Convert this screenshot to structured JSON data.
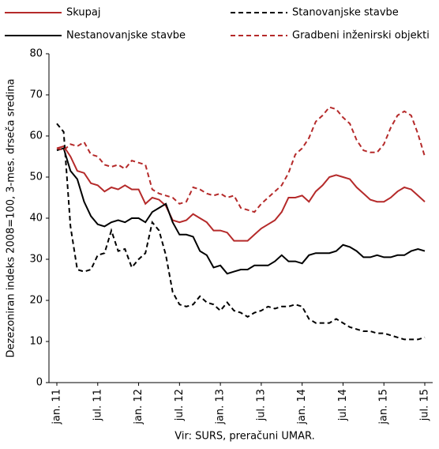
{
  "chart_data": {
    "type": "line",
    "y_label": "Dezezoniran indeks 2008=100, 3-mes. drseča sredina",
    "source": "Vir: SURS, preračuni UMAR.",
    "categories": [
      "jan. 11",
      null,
      null,
      null,
      null,
      null,
      "jul. 11",
      null,
      null,
      null,
      null,
      null,
      "jan. 12",
      null,
      null,
      null,
      null,
      null,
      "jul. 12",
      null,
      null,
      null,
      null,
      null,
      "jan. 13",
      null,
      null,
      null,
      null,
      null,
      "jul. 13",
      null,
      null,
      null,
      null,
      null,
      "jan. 14",
      null,
      null,
      null,
      null,
      null,
      "jul. 14",
      null,
      null,
      null,
      null,
      null,
      "jan. 15",
      null,
      null,
      null,
      null,
      null,
      "jul. 15"
    ],
    "series": [
      {
        "name": "Skupaj",
        "color": "#b52a2a",
        "dashed": false,
        "values": [
          57,
          57.5,
          55,
          51.5,
          51,
          48.5,
          48,
          46.5,
          47.5,
          47,
          48,
          47,
          47,
          43.5,
          45,
          44.5,
          43,
          39.5,
          39,
          39.5,
          41,
          40,
          39,
          37,
          37,
          36.5,
          34.5,
          34.5,
          34.5,
          36,
          37.5,
          38.5,
          39.5,
          41.5,
          45,
          45,
          45.5,
          44,
          46.5,
          48,
          50,
          50.5,
          50,
          49.5,
          47.5,
          46,
          44.5,
          44,
          44,
          45,
          46.5,
          47.5,
          47,
          45.5,
          44
        ]
      },
      {
        "name": "Stanovanjske stavbe",
        "color": "#000000",
        "dashed": true,
        "values": [
          63,
          61,
          38,
          27.5,
          27,
          27.5,
          31,
          31.5,
          37,
          32,
          32.5,
          28,
          30,
          31.5,
          39,
          37,
          31,
          22,
          19,
          18.5,
          19,
          21,
          19.5,
          19,
          17.5,
          19.5,
          17.5,
          17,
          16,
          17,
          17.5,
          18.5,
          18,
          18.5,
          18.5,
          19,
          18.5,
          15.5,
          14.5,
          14.5,
          14.5,
          15.5,
          14.5,
          13.5,
          13,
          12.5,
          12.5,
          12,
          12,
          11.5,
          11,
          10.5,
          10.5,
          10.5,
          11
        ]
      },
      {
        "name": "Nestanovanjske stavbe",
        "color": "#000000",
        "dashed": false,
        "values": [
          56.5,
          57,
          51.5,
          49.5,
          44,
          40.5,
          38.5,
          38,
          39,
          39.5,
          39,
          40,
          40,
          39,
          41.5,
          42.5,
          43.5,
          39,
          36,
          36,
          35.5,
          32,
          31,
          28,
          28.5,
          26.5,
          27,
          27.5,
          27.5,
          28.5,
          28.5,
          28.5,
          29.5,
          31,
          29.5,
          29.5,
          29,
          31,
          31.5,
          31.5,
          31.5,
          32,
          33.5,
          33,
          32,
          30.5,
          30.5,
          31,
          30.5,
          30.5,
          31,
          31,
          32,
          32.5,
          32
        ]
      },
      {
        "name": "Gradbeni inženirski objekti",
        "color": "#b52a2a",
        "dashed": true,
        "values": [
          57,
          56.5,
          58,
          57.5,
          58.5,
          55.5,
          55,
          53,
          52.5,
          53,
          52,
          54,
          53.5,
          53,
          47,
          46,
          45.5,
          45,
          43.5,
          44,
          47.5,
          47,
          46,
          45.5,
          46,
          45,
          45.5,
          42.5,
          42,
          41.5,
          43.5,
          45,
          46.5,
          48,
          51,
          55.5,
          57,
          59.5,
          63.5,
          65,
          67,
          66.5,
          64.5,
          63,
          59,
          56.5,
          56,
          56,
          58,
          62,
          65,
          66,
          65,
          60.5,
          55
        ]
      }
    ],
    "ylim": [
      0,
      80
    ],
    "yticks": [
      0,
      10,
      20,
      30,
      40,
      50,
      60,
      70,
      80
    ],
    "grid": false
  }
}
